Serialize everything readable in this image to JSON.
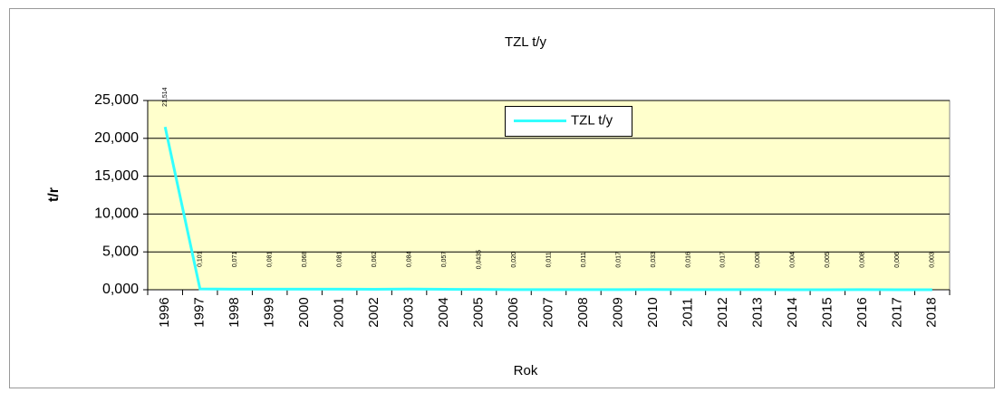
{
  "chart_data": {
    "type": "line",
    "title": "TZL t/y",
    "x_label": "Rok",
    "y_label": "t/r",
    "categories": [
      "1996",
      "1997",
      "1998",
      "1999",
      "2000",
      "2001",
      "2002",
      "2003",
      "2004",
      "2005",
      "2006",
      "2007",
      "2008",
      "2009",
      "2010",
      "2011",
      "2012",
      "2013",
      "2014",
      "2015",
      "2016",
      "2017",
      "2018"
    ],
    "series": [
      {
        "name": "TZL t/y",
        "color": "#33ffff",
        "values": [
          21.514,
          0.101,
          0.071,
          0.081,
          0.068,
          0.081,
          0.062,
          0.084,
          0.057,
          0.0435,
          0.02,
          0.011,
          0.011,
          0.017,
          0.033,
          0.016,
          0.017,
          0.008,
          0.004,
          0.005,
          0.008,
          0.006,
          0.003
        ],
        "value_labels": [
          "21,514",
          "0,101",
          "0,071",
          "0,081",
          "0,068",
          "0,081",
          "0,062",
          "0,084",
          "0,057",
          "0,0435",
          "0,020",
          "0,011",
          "0,011",
          "0,017",
          "0,033",
          "0,016",
          "0,017",
          "0,008",
          "0,004",
          "0,005",
          "0,008",
          "0,006",
          "0,003"
        ]
      }
    ],
    "ylim": [
      0,
      25
    ],
    "yticks": [
      {
        "value": 0,
        "label": "0,000"
      },
      {
        "value": 5,
        "label": "5,000"
      },
      {
        "value": 10,
        "label": "10,000"
      },
      {
        "value": 15,
        "label": "15,000"
      },
      {
        "value": 20,
        "label": "20,000"
      },
      {
        "value": 25,
        "label": "25,000"
      }
    ],
    "grid": true,
    "plot_background": "#ffffcc",
    "legend": "top"
  }
}
